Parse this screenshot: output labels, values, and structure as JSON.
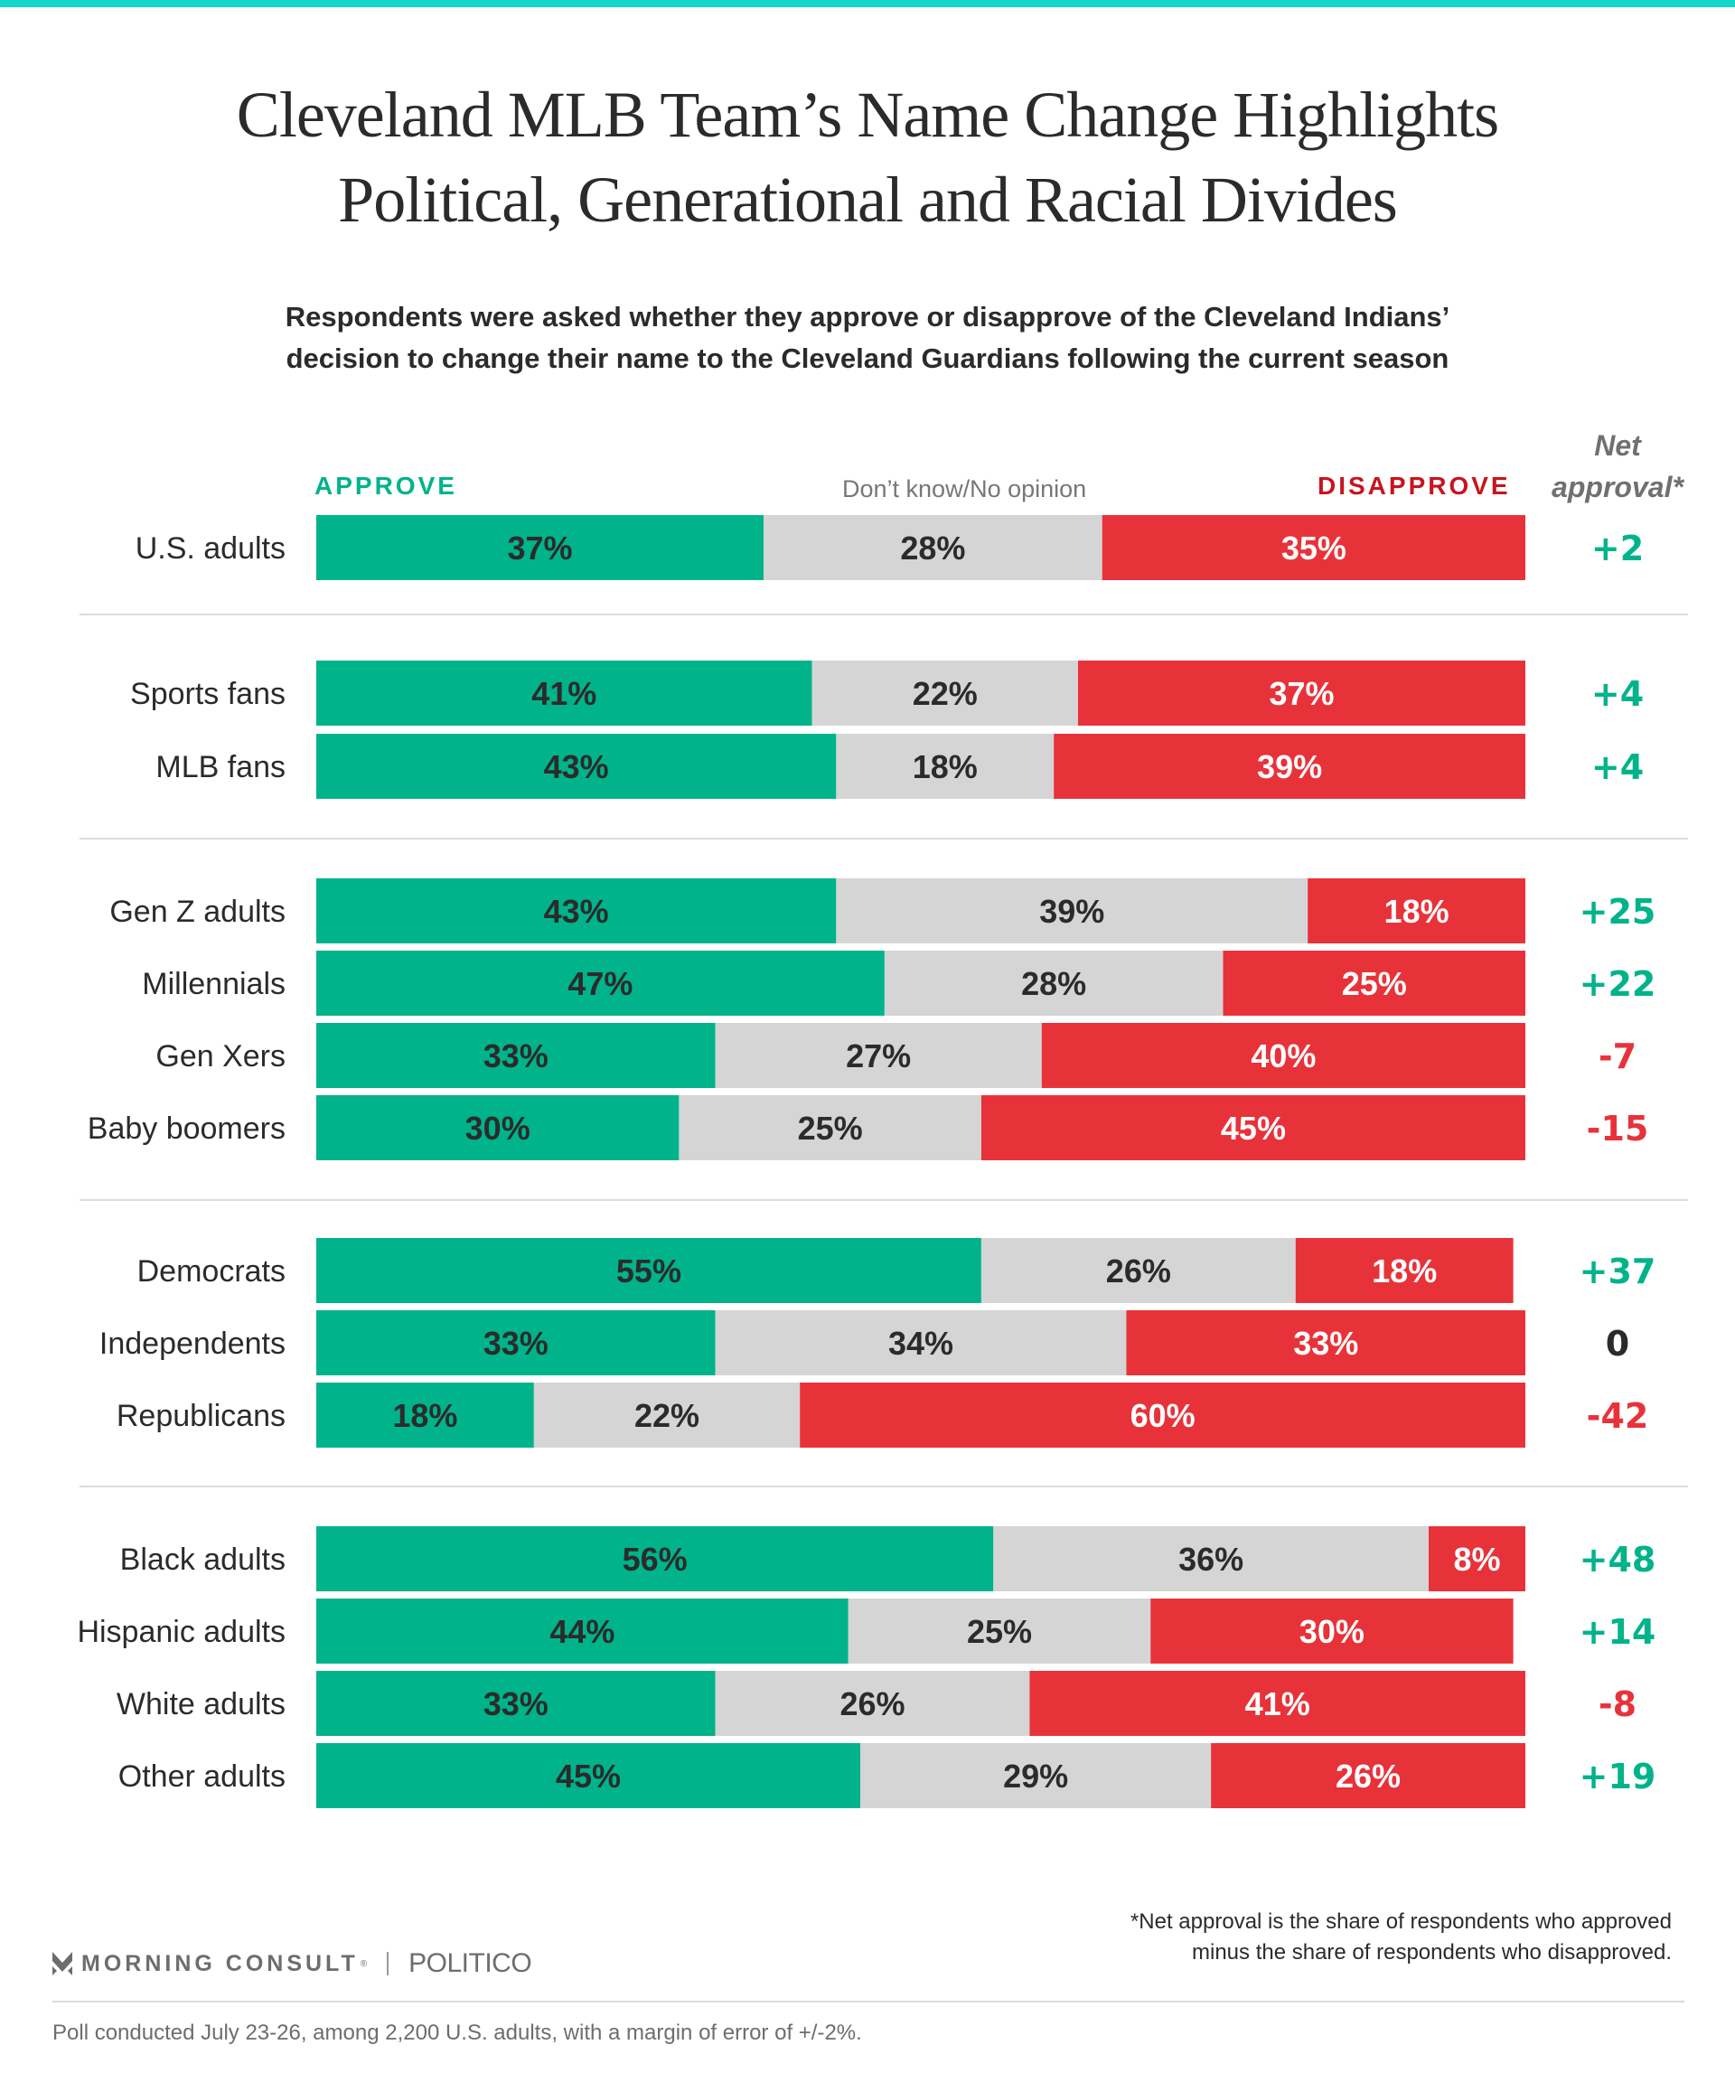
{
  "title_lines": [
    "Cleveland MLB Team’s Name Change Highlights",
    "Political, Generational and Racial Divides"
  ],
  "subtitle_lines": [
    "Respondents were asked whether they approve or disapprove of the Cleveland Indians’",
    "decision to change their name to the Cleveland Guardians following the current season"
  ],
  "colors": {
    "approve": "#00b38a",
    "neutral": "#d5d5d5",
    "disapprove": "#e8323a",
    "disapprove_header": "#c8141e",
    "positive_net": "#00b38a",
    "negative_net": "#e8323a",
    "zero_net": "#2b2b2b",
    "accent_bar": "#13d6c9"
  },
  "chart_data": {
    "type": "bar",
    "orientation": "horizontal-stacked-100",
    "title": "Cleveland MLB Team’s Name Change Highlights Political, Generational and Racial Divides",
    "legend": [
      "APPROVE",
      "Don’t know/No opinion",
      "DISAPPROVE"
    ],
    "net_header": [
      "Net",
      "approval*"
    ],
    "xlim": [
      0,
      100
    ],
    "unit": "%",
    "groups": [
      {
        "rows": [
          0
        ]
      },
      {
        "rows": [
          1,
          2
        ]
      },
      {
        "rows": [
          3,
          4,
          5,
          6
        ]
      },
      {
        "rows": [
          7,
          8,
          9
        ]
      },
      {
        "rows": [
          10,
          11,
          12,
          13
        ]
      }
    ],
    "categories": [
      "U.S. adults",
      "Sports fans",
      "MLB fans",
      "Gen Z adults",
      "Millennials",
      "Gen Xers",
      "Baby boomers",
      "Democrats",
      "Independents",
      "Republicans",
      "Black adults",
      "Hispanic adults",
      "White adults",
      "Other adults"
    ],
    "series": [
      {
        "name": "Approve",
        "values": [
          37,
          41,
          43,
          43,
          47,
          33,
          30,
          55,
          33,
          18,
          56,
          44,
          33,
          45
        ]
      },
      {
        "name": "Don’t know/No opinion",
        "values": [
          28,
          22,
          18,
          39,
          28,
          27,
          25,
          26,
          34,
          22,
          36,
          25,
          26,
          29
        ]
      },
      {
        "name": "Disapprove",
        "values": [
          35,
          37,
          39,
          18,
          25,
          40,
          45,
          18,
          33,
          60,
          8,
          30,
          41,
          26
        ]
      }
    ],
    "net_approval": [
      "+2",
      "+4",
      "+4",
      "+25",
      "+22",
      "-7",
      "-15",
      "+37",
      "0",
      "-42",
      "+48",
      "+14",
      "-8",
      "+19"
    ]
  },
  "footnote_lines": [
    "*Net approval is the share of respondents who approved",
    "minus the share of respondents who disapproved."
  ],
  "logos": {
    "morning_consult": "MORNING CONSULT",
    "politico": "POLITICO"
  },
  "poll_note": "Poll conducted July 23-26, among 2,200 U.S. adults, with a margin of error of +/-2%."
}
